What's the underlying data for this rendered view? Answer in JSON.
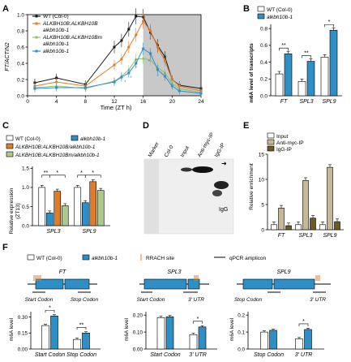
{
  "chart_data": [
    {
      "panel": "A",
      "type": "line",
      "ylabel": "FT/ACTIN2",
      "xlabel": "Time (ZT h)",
      "xticks": [
        "0",
        "4",
        "8",
        "12",
        "16",
        "20",
        "24"
      ],
      "yticks": [
        "0.0",
        "0.2",
        "0.4",
        "0.6",
        "0.8",
        "1.0"
      ],
      "xlim": [
        0,
        24
      ],
      "ylim": [
        0,
        1.0
      ],
      "shade_start": 16,
      "legend": [
        "WT (Col-0)",
        "ALKBH10B:ALKBH10B",
        "alkbh10b-1",
        "ALKBH10B:ALKBH10Bm",
        "alkbh10b-1",
        "alkbh10b-1"
      ],
      "x": [
        1,
        4,
        8,
        12,
        13,
        14,
        15,
        16,
        17,
        18,
        19,
        20,
        21,
        24
      ],
      "series": [
        {
          "color": "#1a1a1a",
          "values": [
            0.16,
            0.22,
            0.14,
            0.6,
            0.68,
            0.82,
            0.98,
            0.97,
            0.78,
            0.62,
            0.48,
            0.2,
            0.13,
            0.09
          ]
        },
        {
          "color": "#e07b28",
          "values": [
            0.12,
            0.17,
            0.12,
            0.38,
            0.45,
            0.6,
            0.75,
            0.92,
            0.8,
            0.6,
            0.43,
            0.2,
            0.12,
            0.06
          ]
        },
        {
          "color": "#93bf6e",
          "values": [
            0.1,
            0.12,
            0.09,
            0.18,
            0.24,
            0.32,
            0.45,
            0.46,
            0.44,
            0.35,
            0.28,
            0.15,
            0.09,
            0.04
          ]
        },
        {
          "color": "#2e8fc7",
          "values": [
            0.09,
            0.1,
            0.1,
            0.17,
            0.23,
            0.28,
            0.4,
            0.58,
            0.52,
            0.32,
            0.24,
            0.12,
            0.06,
            0.03
          ]
        }
      ]
    },
    {
      "panel": "B",
      "type": "bar",
      "ylabel": "m6A level of transcripts",
      "categories": [
        "FT",
        "SPL3",
        "SPL9"
      ],
      "yticks": [
        "0.0",
        "0.2",
        "0.4",
        "0.6",
        "0.8"
      ],
      "ylim": [
        0,
        0.85
      ],
      "legend": [
        "WT (Col-0)",
        "alkbh10b-1"
      ],
      "series": [
        {
          "name": "WT (Col-0)",
          "color": "#ffffff",
          "values": [
            0.26,
            0.17,
            0.46
          ]
        },
        {
          "name": "alkbh10b-1",
          "color": "#2e8fc7",
          "values": [
            0.5,
            0.41,
            0.78
          ]
        }
      ],
      "annotations": [
        "**",
        "**",
        "*"
      ]
    },
    {
      "panel": "C",
      "type": "bar",
      "ylabel": "Relative expression",
      "ylabel2": "(ZT13)",
      "categories": [
        "SPL3",
        "SPL9"
      ],
      "yticks": [
        "0.0",
        "0.5",
        "1.0",
        "1.5"
      ],
      "ylim": [
        0,
        1.55
      ],
      "legend": [
        "WT (Col-0)",
        "alkbh10b-1",
        "ALKBH10B:ALKBH10B/alkbh10b-1",
        "ALKBH10B:ALKBH10Bm/alkbh10b-1"
      ],
      "series": [
        {
          "name": "WT (Col-0)",
          "color": "#ffffff",
          "values": [
            1.0,
            1.0
          ]
        },
        {
          "name": "alkbh10b-1",
          "color": "#2e8fc7",
          "values": [
            0.33,
            0.6
          ]
        },
        {
          "name": "ALKBH10B:ALKBH10B/alkbh10b-1",
          "color": "#e07b28",
          "values": [
            0.9,
            1.15
          ]
        },
        {
          "name": "ALKBH10B:ALKBH10Bm/alkbh10b-1",
          "color": "#aac98a",
          "values": [
            0.52,
            0.92
          ]
        }
      ],
      "annotations": [
        "**",
        "*",
        "*",
        "*"
      ]
    },
    {
      "panel": "E",
      "type": "bar",
      "ylabel": "Relative enrichment",
      "categories": [
        "FT",
        "SPL3",
        "SPL9"
      ],
      "yticks": [
        "0",
        "5",
        "10",
        "15"
      ],
      "ylim": [
        0,
        15
      ],
      "legend": [
        "Input",
        "Anti-myc-IP",
        "IgG-IP"
      ],
      "series": [
        {
          "name": "Input",
          "color": "#ffffff",
          "values": [
            1.0,
            1.0,
            1.0
          ]
        },
        {
          "name": "Anti-myc-IP",
          "color": "#c4b896",
          "values": [
            4.3,
            9.8,
            12.4
          ]
        },
        {
          "name": "IgG-IP",
          "color": "#6b5a22",
          "values": [
            0.8,
            2.3,
            1.6
          ]
        }
      ]
    },
    {
      "panel": "F1",
      "type": "bar",
      "ylabel": "m6A level",
      "categories": [
        "Start Codon",
        "Stop Codon"
      ],
      "yticks": [
        "0.00",
        "0.15",
        "0.30"
      ],
      "ylim": [
        0,
        0.35
      ],
      "series": [
        {
          "name": "WT (Col-0)",
          "color": "#ffffff",
          "values": [
            0.22,
            0.09
          ]
        },
        {
          "name": "alkbh10b-1",
          "color": "#2e8fc7",
          "values": [
            0.31,
            0.15
          ]
        }
      ],
      "annotations": [
        "*",
        "**"
      ]
    },
    {
      "panel": "F2",
      "type": "bar",
      "ylabel": "m6A level",
      "categories": [
        "Start Codon",
        "3' UTR"
      ],
      "yticks": [
        "0.00",
        "0.10",
        "0.20"
      ],
      "ylim": [
        0,
        0.22
      ],
      "series": [
        {
          "name": "WT (Col-0)",
          "color": "#ffffff",
          "values": [
            0.185,
            0.085
          ]
        },
        {
          "name": "alkbh10b-1",
          "color": "#2e8fc7",
          "values": [
            0.19,
            0.13
          ]
        }
      ],
      "annotations": [
        "",
        "*"
      ]
    },
    {
      "panel": "F3",
      "type": "bar",
      "ylabel": "m6A level",
      "categories": [
        "Stop Codon",
        "3' UTR"
      ],
      "yticks": [
        "0.0",
        "0.1",
        "0.2"
      ],
      "ylim": [
        0,
        0.22
      ],
      "series": [
        {
          "name": "WT (Col-0)",
          "color": "#ffffff",
          "values": [
            0.1,
            0.06
          ]
        },
        {
          "name": "alkbh10b-1",
          "color": "#2e8fc7",
          "values": [
            0.11,
            0.115
          ]
        }
      ],
      "annotations": [
        "",
        "*"
      ]
    }
  ],
  "labels": {
    "A": "A",
    "B": "B",
    "C": "C",
    "D": "D",
    "E": "E",
    "F": "F"
  },
  "blot": {
    "lanes": [
      "Marker",
      "Col-0",
      "Input",
      "Anti-myc-IP",
      "IgG-IP"
    ],
    "igg": "IgG"
  },
  "genes": {
    "legend": [
      "WT (Col-0)",
      "alkbh10b-1",
      "RRACH site",
      "qPCR amplicon"
    ],
    "items": [
      {
        "name": "FT",
        "start": "Start Codon",
        "end": "Stop Codon"
      },
      {
        "name": "SPL3",
        "start": "Start Codon",
        "end": "3' UTR"
      },
      {
        "name": "SPL9",
        "start": "Stop Codon",
        "end": "3' UTR"
      }
    ]
  },
  "colors": {
    "blue": "#2e8fc7",
    "orange": "#e07b28",
    "green": "#aac98a",
    "khaki": "#c4b896",
    "olive": "#6b5a22",
    "shade": "#c8c8c8",
    "rrach": "#e07b28"
  }
}
